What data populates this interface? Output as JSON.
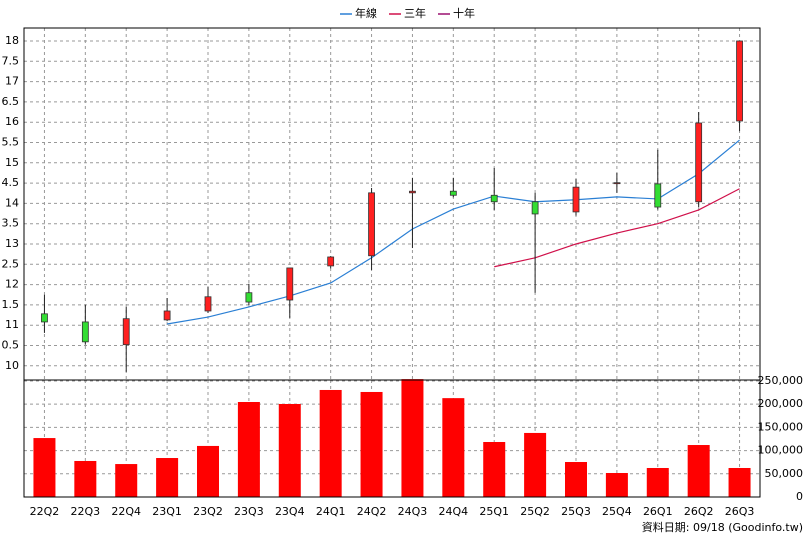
{
  "chart_data": [
    {
      "type": "candlestick",
      "open": [
        11.28,
        11.08,
        10.52,
        11.13,
        11.35,
        11.8,
        11.62,
        12.46,
        12.71,
        14.26,
        14.3,
        14.2,
        14.04,
        13.79,
        14.49,
        14.48,
        14.04,
        16.03
      ],
      "high": [
        11.75,
        11.5,
        11.45,
        11.67,
        11.94,
        12.02,
        12.4,
        12.7,
        14.38,
        14.63,
        14.63,
        14.87,
        14.26,
        14.6,
        14.75,
        15.32,
        16.25,
        18
      ],
      "low": [
        10.81,
        10.52,
        9.85,
        11.1,
        11.3,
        11.5,
        11.18,
        12.4,
        12.36,
        12.9,
        14.15,
        13.84,
        11.8,
        13.7,
        14.26,
        13.85,
        13.9,
        15.78
      ],
      "close": [
        11.08,
        10.59,
        11.16,
        11.35,
        11.7,
        11.57,
        12.41,
        12.68,
        14.26,
        14.3,
        14.2,
        14.04,
        13.74,
        14.4,
        14.51,
        13.91,
        15.98,
        18
      ],
      "up_color": "#ff2020",
      "down_color": "#33dd33",
      "series": [
        {
          "name": "年線",
          "color": "#2a7fd4",
          "values": [
            null,
            null,
            null,
            11.03,
            11.2,
            11.45,
            11.72,
            12.04,
            12.66,
            13.37,
            13.86,
            14.18,
            14.04,
            14.09,
            14.16,
            14.11,
            14.73,
            15.56
          ]
        },
        {
          "name": "三年",
          "color": "#d0104a",
          "values": [
            null,
            null,
            null,
            null,
            null,
            null,
            null,
            null,
            null,
            null,
            null,
            12.44,
            12.66,
            13.0,
            13.27,
            13.5,
            13.84,
            14.36
          ]
        },
        {
          "name": "十年",
          "color": "#9a1070",
          "values": [
            null,
            null,
            null,
            null,
            null,
            null,
            null,
            null,
            null,
            null,
            null,
            null,
            null,
            null,
            null,
            null,
            null,
            null
          ]
        }
      ],
      "ylim": [
        9.65,
        18.32
      ],
      "yticks": [
        18,
        {
          "value": 17.5,
          "label": "7.5"
        },
        17,
        {
          "value": 16.5,
          "label": "6.5"
        },
        16,
        {
          "value": 15.5,
          "label": "5.5"
        },
        15,
        {
          "value": 14.5,
          "label": "4.5"
        },
        14,
        {
          "value": 13.5,
          "label": "3.5"
        },
        13,
        {
          "value": 12.5,
          "label": "2.5"
        },
        12,
        {
          "value": 11.5,
          "label": "1.5"
        },
        11,
        {
          "value": 10.5,
          "label": "0.5"
        },
        10
      ],
      "grid": true
    },
    {
      "type": "bar",
      "categories": [
        "22Q2",
        "22Q3",
        "22Q4",
        "23Q1",
        "23Q2",
        "23Q3",
        "23Q4",
        "24Q1",
        "24Q2",
        "24Q3",
        "24Q4",
        "25Q1",
        "25Q2",
        "25Q3",
        "25Q4",
        "26Q1",
        "26Q2",
        "26Q3"
      ],
      "values": [
        127000,
        77600,
        71000,
        84000,
        110000,
        204700,
        200400,
        230600,
        226300,
        254000,
        213000,
        118500,
        138000,
        75400,
        51700,
        62500,
        112000,
        62500
      ],
      "color": "#ff0000",
      "ylim": [
        0,
        256400
      ],
      "yticks": [
        0,
        {
          "value": 50000,
          "label": "50,000"
        },
        {
          "value": 100000,
          "label": "100,000"
        },
        {
          "value": 150000,
          "label": "150,000"
        },
        {
          "value": 200000,
          "label": "200,000"
        },
        {
          "value": 250000,
          "label": "250,000"
        }
      ],
      "grid": true
    }
  ],
  "footer": "資料日期: 09/18 (Goodinfo.tw)"
}
